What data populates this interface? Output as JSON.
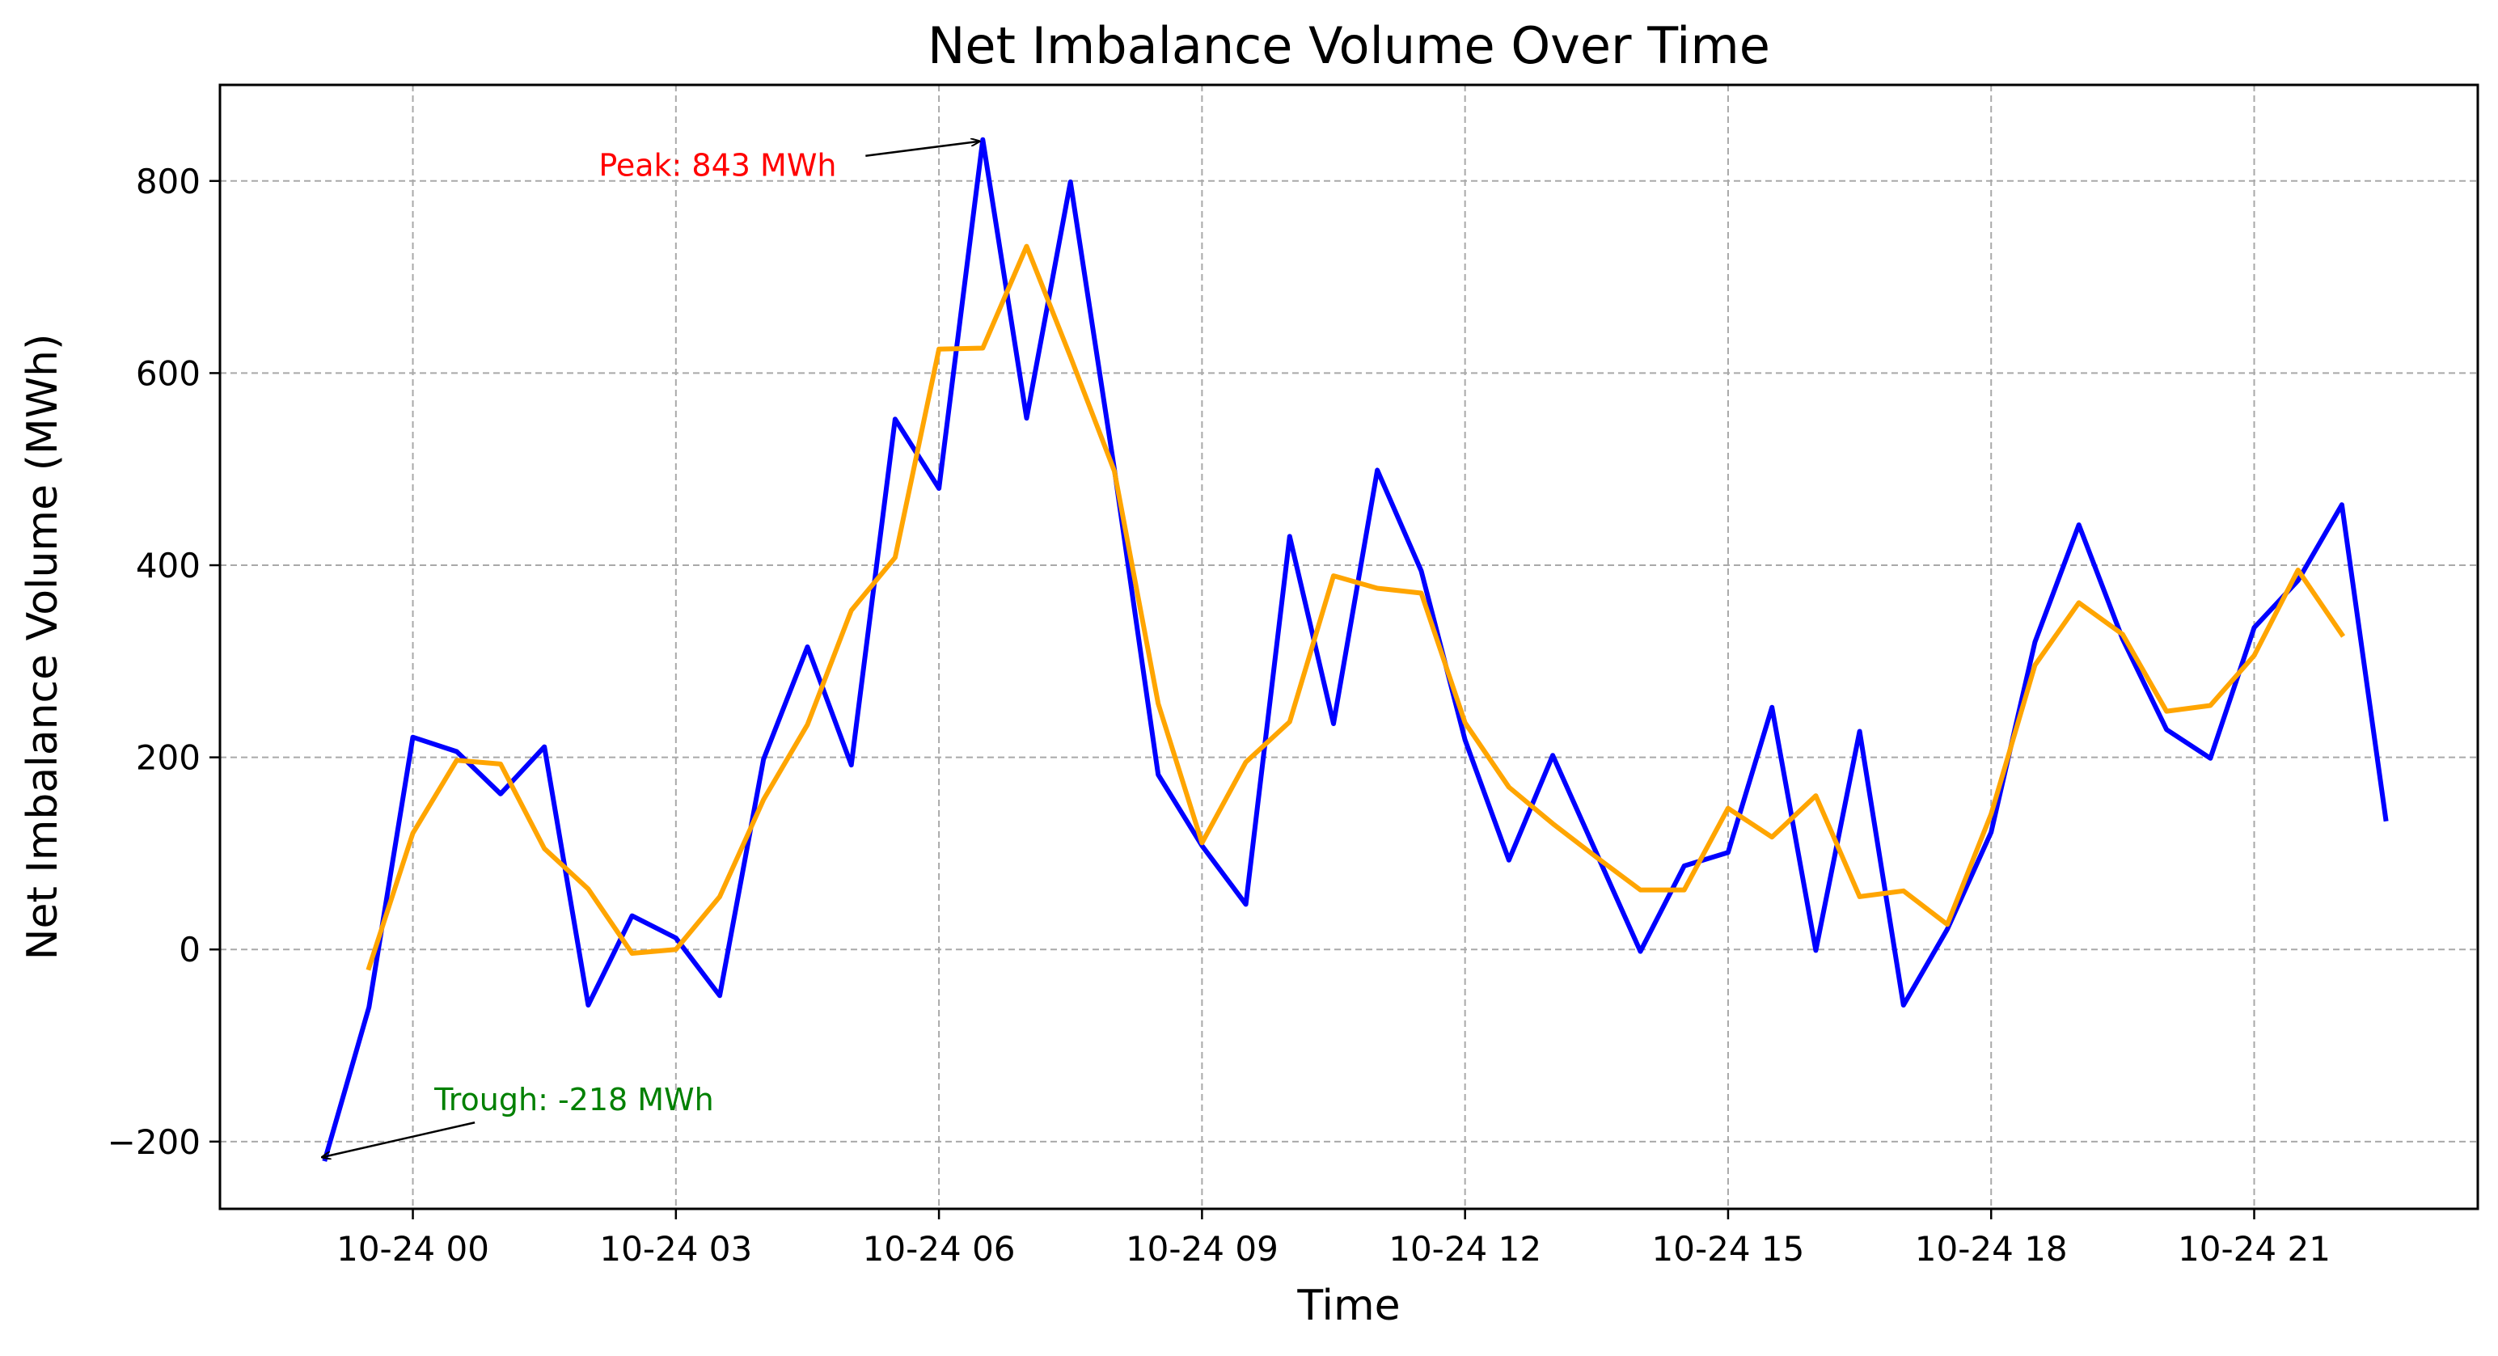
{
  "chart_data": {
    "type": "line",
    "title": "Net Imbalance Volume Over Time",
    "xlabel": "Time",
    "ylabel": "Net Imbalance Volume (MWh)",
    "grid": true,
    "x_tick_labels": [
      "10-24 00",
      "10-24 03",
      "10-24 06",
      "10-24 09",
      "10-24 12",
      "10-24 15",
      "10-24 18",
      "10-24 21"
    ],
    "y_ticks": [
      -200,
      0,
      200,
      400,
      600,
      800
    ],
    "y_tick_labels": [
      "−200",
      "0",
      "200",
      "400",
      "600",
      "800"
    ],
    "x_unit": "hours from 10-24 00",
    "xlim": [
      -2.2,
      23.55
    ],
    "ylim": [
      -270,
      900
    ],
    "series": [
      {
        "color": "#0000ff",
        "x": [
          -1,
          -0.5,
          0,
          0.5,
          1,
          1.5,
          2,
          2.5,
          3,
          3.5,
          4,
          4.5,
          5,
          5.5,
          6,
          6.5,
          7,
          7.5,
          8,
          8.5,
          9,
          9.5,
          10,
          10.5,
          11,
          11.5,
          12,
          12.5,
          13,
          13.5,
          14,
          14.5,
          15,
          15.5,
          16,
          16.5,
          17,
          17.5,
          18,
          18.5,
          19,
          19.5,
          20,
          20.5,
          21,
          21.5,
          22,
          22.5
        ],
        "values": [
          -218,
          -60,
          221,
          206,
          162,
          211,
          -58,
          35,
          12,
          -48,
          198,
          315,
          192,
          552,
          480,
          843,
          553,
          799,
          500,
          182,
          108,
          47,
          430,
          235,
          499,
          394,
          218,
          93,
          202,
          100,
          -2,
          87,
          101,
          252,
          -1,
          227,
          -58,
          21,
          122,
          320,
          442,
          323,
          229,
          199,
          335,
          384,
          463,
          136
        ]
      },
      {
        "color": "#ffa500",
        "x": [
          -0.5,
          0,
          0.5,
          1,
          1.5,
          2,
          2.5,
          3,
          3.5,
          4,
          4.5,
          5,
          5.5,
          6,
          6.5,
          7,
          7.5,
          8,
          8.5,
          9,
          9.5,
          10,
          10.5,
          11,
          11.5,
          12,
          12.5,
          13,
          13.5,
          14,
          14.5,
          15,
          15.5,
          16,
          16.5,
          17,
          17.5,
          18,
          18.5,
          19,
          19.5,
          20,
          20.5,
          21,
          21.5,
          22
        ],
        "values": [
          -19,
          121,
          197,
          193,
          105,
          63,
          -4,
          0,
          55,
          156,
          234,
          353,
          408,
          625,
          626,
          732,
          617,
          498,
          256,
          111,
          195,
          237,
          389,
          376,
          371,
          236,
          169,
          131,
          96,
          62,
          62,
          147,
          117,
          160,
          55,
          61,
          26,
          141,
          296,
          361,
          328,
          248,
          254,
          306,
          395,
          328
        ]
      }
    ],
    "annotations": [
      {
        "text": "Peak: 843 MWh",
        "color": "#ff0000",
        "x": 6.5,
        "y": 843
      },
      {
        "text": "Trough: -218 MWh",
        "color": "#008000",
        "x": -1,
        "y": -218
      }
    ]
  }
}
